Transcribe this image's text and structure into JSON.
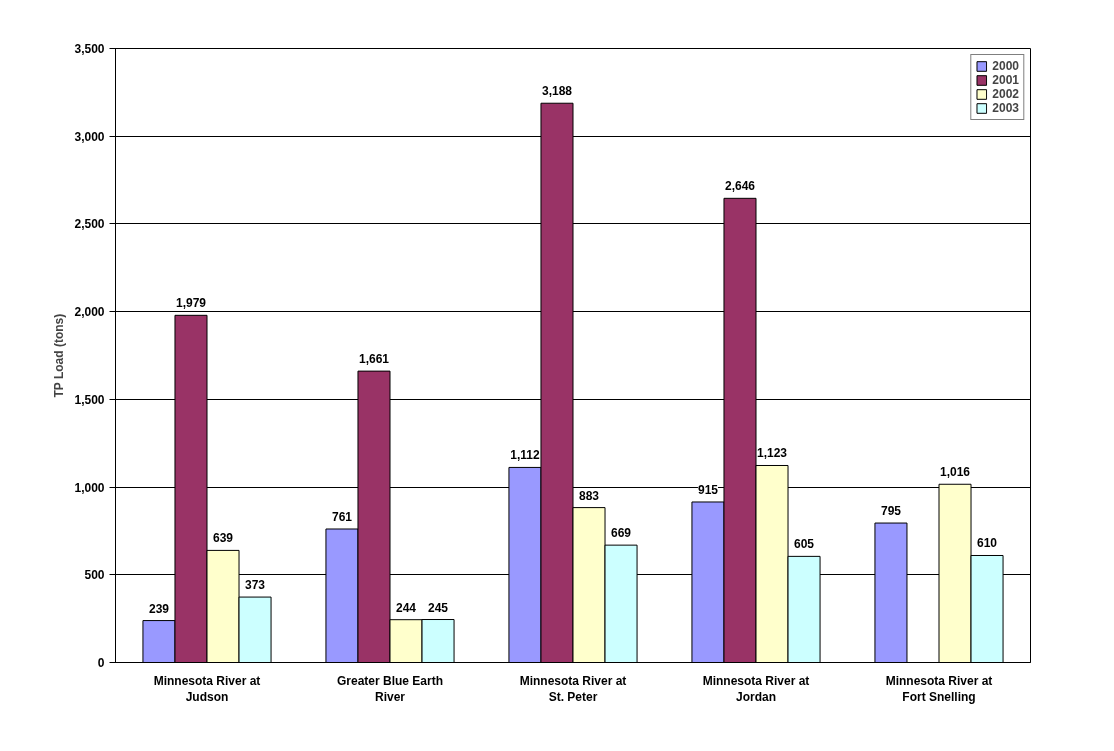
{
  "chart_data": {
    "type": "bar",
    "ylabel": "TP Load (tons)",
    "categories": [
      "Minnesota River at\nJudson",
      "Greater Blue Earth\nRiver",
      "Minnesota River at\nSt. Peter",
      "Minnesota River at\nJordan",
      "Minnesota River at\nFort Snelling"
    ],
    "series": [
      {
        "name": "2000",
        "color": "#9999ff",
        "values": [
          239,
          761,
          1112,
          915,
          795
        ],
        "value_labels": [
          "239",
          "761",
          "1,112",
          "915",
          "795"
        ]
      },
      {
        "name": "2001",
        "color": "#993366",
        "values": [
          1979,
          1661,
          3188,
          2646,
          null
        ],
        "value_labels": [
          "1,979",
          "1,661",
          "3,188",
          "2,646",
          null
        ]
      },
      {
        "name": "2002",
        "color": "#ffffcc",
        "values": [
          639,
          244,
          883,
          1123,
          1016
        ],
        "value_labels": [
          "639",
          "244",
          "883",
          "1,123",
          "1,016"
        ]
      },
      {
        "name": "2003",
        "color": "#ccffff",
        "values": [
          373,
          245,
          669,
          605,
          610
        ],
        "value_labels": [
          "373",
          "245",
          "669",
          "605",
          "610"
        ]
      }
    ],
    "ylim": [
      0,
      3500
    ],
    "yticks": [
      {
        "value": 0,
        "label": "0"
      },
      {
        "value": 500,
        "label": "500"
      },
      {
        "value": 1000,
        "label": "1,000"
      },
      {
        "value": 1500,
        "label": "1,500"
      },
      {
        "value": 2000,
        "label": "2,000"
      },
      {
        "value": 2500,
        "label": "2,500"
      },
      {
        "value": 3000,
        "label": "3,000"
      },
      {
        "value": 3500,
        "label": "3,500"
      }
    ],
    "grid": "y",
    "legend": "top right"
  }
}
